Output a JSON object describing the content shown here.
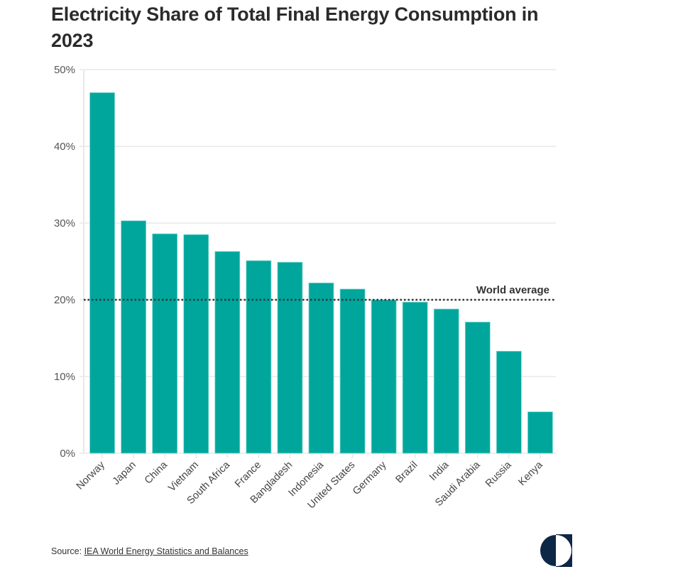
{
  "title": "Electricity Share of Total Final Energy Consumption in 2023",
  "source": {
    "prefix": "Source: ",
    "link_text": "IEA World Energy Statistics and Balances"
  },
  "logo": {
    "icon": "half-circle-logo-icon",
    "color": "#0d2747"
  },
  "colors": {
    "bar": "#00a69c",
    "bar_edge": "#7fd8d2",
    "grid": "#e8e8e8",
    "reference": "#333333"
  },
  "chart_data": {
    "type": "bar",
    "title": "Electricity Share of Total Final Energy Consumption in 2023",
    "xlabel": "",
    "ylabel": "",
    "ylim": [
      0,
      50
    ],
    "yticks": [
      0,
      10,
      20,
      30,
      40,
      50
    ],
    "ytick_labels": [
      "0%",
      "10%",
      "20%",
      "30%",
      "40%",
      "50%"
    ],
    "grid": true,
    "categories": [
      "Norway",
      "Japan",
      "China",
      "Vietnam",
      "South Africa",
      "France",
      "Bangladesh",
      "Indonesia",
      "United States",
      "Germany",
      "Brazil",
      "India",
      "Saudi Arabia",
      "Russia",
      "Kenya"
    ],
    "values": [
      47.0,
      30.3,
      28.6,
      28.5,
      26.3,
      25.1,
      24.9,
      22.2,
      21.4,
      20.0,
      19.7,
      18.8,
      17.1,
      13.3,
      5.4
    ],
    "unit": "%",
    "reference_line": {
      "label": "World average",
      "value": 20,
      "style": "dotted"
    }
  }
}
